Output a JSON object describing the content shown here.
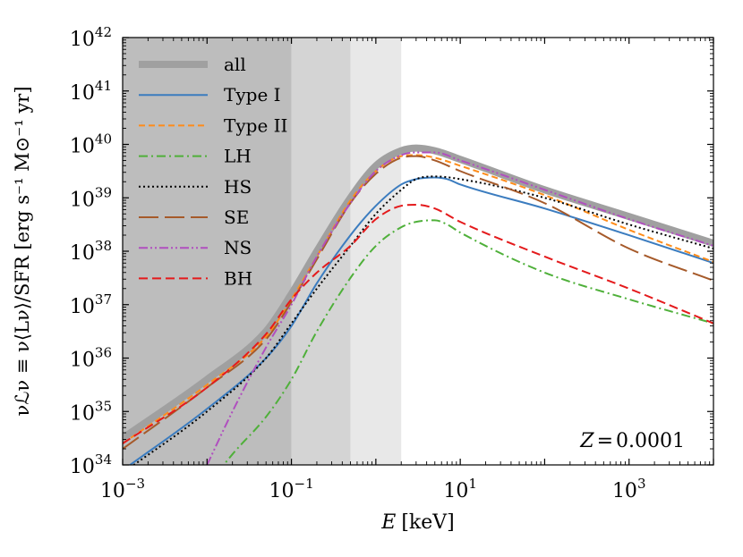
{
  "chart_data": {
    "type": "line",
    "xscale": "log",
    "yscale": "log",
    "xlim": [
      0.001,
      10000
    ],
    "ylim": [
      1e+34,
      1e+42
    ],
    "xlabel": {
      "var": "E",
      "unit": "[keV]"
    },
    "ylabel": "νℒν ≡ ν⟨Lν⟩/SFR [erg s⁻¹ M⊙⁻¹ yr]",
    "annotation": {
      "lhs": "Z",
      "eq": "=",
      "value": "0.0001"
    },
    "xticks": [
      {
        "value": 0.001,
        "base": "10",
        "exp": "−3"
      },
      {
        "value": 0.1,
        "base": "10",
        "exp": "−1"
      },
      {
        "value": 10,
        "base": "10",
        "exp": "1"
      },
      {
        "value": 1000,
        "base": "10",
        "exp": "3"
      }
    ],
    "yticks": [
      {
        "value": 1e+34,
        "base": "10",
        "exp": "34"
      },
      {
        "value": 1e+35,
        "base": "10",
        "exp": "35"
      },
      {
        "value": 1e+36,
        "base": "10",
        "exp": "36"
      },
      {
        "value": 1e+37,
        "base": "10",
        "exp": "37"
      },
      {
        "value": 1e+38,
        "base": "10",
        "exp": "38"
      },
      {
        "value": 1e+39,
        "base": "10",
        "exp": "39"
      },
      {
        "value": 1e+40,
        "base": "10",
        "exp": "40"
      },
      {
        "value": 1e+41,
        "base": "10",
        "exp": "41"
      },
      {
        "value": 1e+42,
        "base": "10",
        "exp": "42"
      }
    ],
    "shaded_bands": [
      {
        "x_range": [
          0.001,
          0.1
        ],
        "color": "#bdbdbd"
      },
      {
        "x_range": [
          0.1,
          0.5
        ],
        "color": "#d4d4d4"
      },
      {
        "x_range": [
          0.5,
          2.0
        ],
        "color": "#e8e8e8"
      }
    ],
    "series": [
      {
        "name": "all",
        "color": "#a0a0a0",
        "dash": "solid",
        "width": 8,
        "points": [
          [
            0.001,
            34.5
          ],
          [
            0.01,
            35.6
          ],
          [
            0.05,
            36.5
          ],
          [
            0.1,
            37.2
          ],
          [
            0.2,
            38.0
          ],
          [
            0.5,
            39.0
          ],
          [
            1,
            39.6
          ],
          [
            2,
            39.88
          ],
          [
            3,
            39.93
          ],
          [
            5,
            39.88
          ],
          [
            10,
            39.72
          ],
          [
            100,
            39.15
          ],
          [
            1000,
            38.65
          ],
          [
            10000,
            38.15
          ]
        ]
      },
      {
        "name": "Type I",
        "color": "#3b7cbf",
        "dash": "solid",
        "width": 2,
        "points": [
          [
            0.001,
            33.9
          ],
          [
            0.01,
            35.05
          ],
          [
            0.05,
            36.0
          ],
          [
            0.1,
            36.6
          ],
          [
            0.2,
            37.4
          ],
          [
            0.5,
            38.3
          ],
          [
            1,
            38.85
          ],
          [
            2,
            39.25
          ],
          [
            3,
            39.35
          ],
          [
            5,
            39.38
          ],
          [
            7,
            39.35
          ],
          [
            10,
            39.25
          ],
          [
            100,
            38.8
          ],
          [
            1000,
            38.3
          ],
          [
            10000,
            37.78
          ]
        ]
      },
      {
        "name": "Type II",
        "color": "#ff8c1a",
        "dash": "7,4",
        "width": 2,
        "points": [
          [
            0.001,
            34.4
          ],
          [
            0.01,
            35.5
          ],
          [
            0.05,
            36.4
          ],
          [
            0.1,
            37.1
          ],
          [
            0.2,
            37.9
          ],
          [
            0.5,
            38.95
          ],
          [
            1,
            39.5
          ],
          [
            2,
            39.78
          ],
          [
            3,
            39.8
          ],
          [
            5,
            39.75
          ],
          [
            10,
            39.6
          ],
          [
            100,
            39.05
          ],
          [
            1000,
            38.4
          ],
          [
            10000,
            37.8
          ]
        ]
      },
      {
        "name": "LH",
        "color": "#4fb03a",
        "dash": "10,4,2,4",
        "width": 2,
        "points": [
          [
            0.01,
            33.6
          ],
          [
            0.02,
            34.2
          ],
          [
            0.05,
            34.9
          ],
          [
            0.1,
            35.6
          ],
          [
            0.2,
            36.5
          ],
          [
            0.5,
            37.5
          ],
          [
            1,
            38.1
          ],
          [
            2,
            38.45
          ],
          [
            3,
            38.55
          ],
          [
            5,
            38.58
          ],
          [
            7,
            38.5
          ],
          [
            10,
            38.35
          ],
          [
            100,
            37.6
          ],
          [
            1000,
            37.1
          ],
          [
            10000,
            36.65
          ]
        ]
      },
      {
        "name": "HS",
        "color": "#000000",
        "dash": "2,3",
        "width": 2,
        "points": [
          [
            0.001,
            33.85
          ],
          [
            0.01,
            35.0
          ],
          [
            0.05,
            36.0
          ],
          [
            0.1,
            36.65
          ],
          [
            0.2,
            37.3
          ],
          [
            0.5,
            38.1
          ],
          [
            1,
            38.7
          ],
          [
            2,
            39.15
          ],
          [
            3,
            39.35
          ],
          [
            5,
            39.4
          ],
          [
            10,
            39.35
          ],
          [
            100,
            39.0
          ],
          [
            1000,
            38.5
          ],
          [
            10000,
            38.05
          ]
        ]
      },
      {
        "name": "SE",
        "color": "#a65a2a",
        "dash": "22,7",
        "width": 2,
        "points": [
          [
            0.001,
            34.3
          ],
          [
            0.01,
            35.45
          ],
          [
            0.05,
            36.35
          ],
          [
            0.1,
            37.05
          ],
          [
            0.2,
            37.85
          ],
          [
            0.5,
            38.9
          ],
          [
            1,
            39.45
          ],
          [
            2,
            39.75
          ],
          [
            3,
            39.78
          ],
          [
            5,
            39.7
          ],
          [
            10,
            39.5
          ],
          [
            100,
            38.9
          ],
          [
            1000,
            38.05
          ],
          [
            10000,
            37.45
          ]
        ]
      },
      {
        "name": "NS",
        "color": "#b04fbf",
        "dash": "10,3,2,3,2,3",
        "width": 2,
        "points": [
          [
            0.01,
            34.0
          ],
          [
            0.02,
            35.0
          ],
          [
            0.05,
            36.2
          ],
          [
            0.1,
            37.0
          ],
          [
            0.2,
            37.9
          ],
          [
            0.5,
            38.9
          ],
          [
            1,
            39.5
          ],
          [
            2,
            39.8
          ],
          [
            3,
            39.85
          ],
          [
            5,
            39.85
          ],
          [
            10,
            39.7
          ],
          [
            100,
            39.15
          ],
          [
            1000,
            38.6
          ],
          [
            10000,
            38.1
          ]
        ]
      },
      {
        "name": "BH",
        "color": "#e41a1c",
        "dash": "10,5",
        "width": 2,
        "points": [
          [
            0.001,
            34.4
          ],
          [
            0.01,
            35.45
          ],
          [
            0.05,
            36.45
          ],
          [
            0.1,
            37.1
          ],
          [
            0.2,
            37.6
          ],
          [
            0.5,
            38.1
          ],
          [
            1,
            38.6
          ],
          [
            2,
            38.85
          ],
          [
            3,
            38.87
          ],
          [
            5,
            38.8
          ],
          [
            10,
            38.55
          ],
          [
            100,
            37.9
          ],
          [
            1000,
            37.3
          ],
          [
            10000,
            36.65
          ]
        ]
      }
    ]
  }
}
